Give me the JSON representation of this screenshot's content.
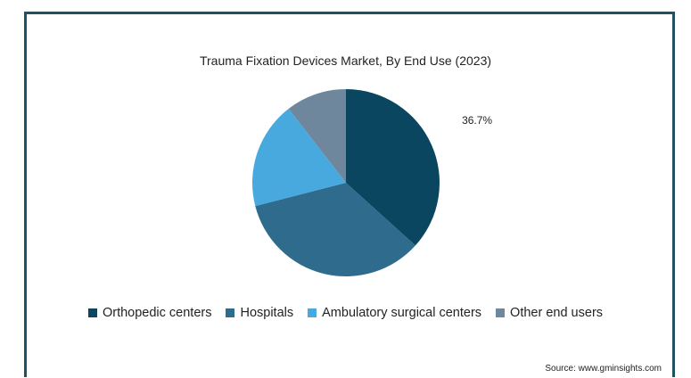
{
  "chart_data": {
    "type": "pie",
    "title": "Trauma Fixation Devices Market, By End Use (2023)",
    "slices": [
      {
        "name": "Orthopedic centers",
        "value": 36.7,
        "color": "#0b4660",
        "label": "36.7%"
      },
      {
        "name": "Hospitals",
        "value": 34.3,
        "color": "#2e6b8c",
        "label": ""
      },
      {
        "name": "Ambulatory surgical centers",
        "value": 18.5,
        "color": "#48a9df",
        "label": ""
      },
      {
        "name": "Other end users",
        "value": 10.5,
        "color": "#6e879c",
        "label": ""
      }
    ],
    "legend_position": "bottom",
    "start_angle": "12 o'clock, clockwise"
  },
  "source": "Source: www.gminsights.com"
}
